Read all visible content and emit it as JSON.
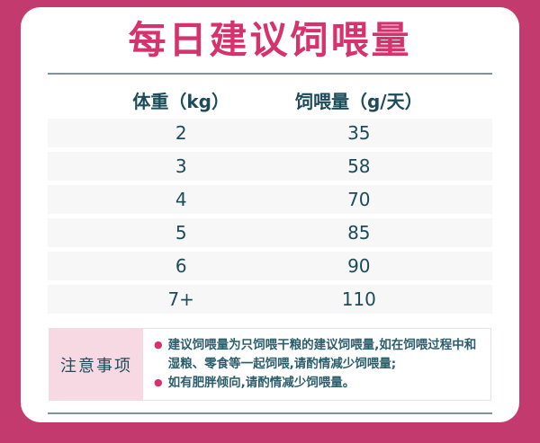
{
  "title": "每日建议饲喂量",
  "table": {
    "headers": [
      "体重（kg）",
      "饲喂量（g/天）"
    ],
    "rows": [
      [
        "2",
        "35"
      ],
      [
        "3",
        "58"
      ],
      [
        "4",
        "70"
      ],
      [
        "5",
        "85"
      ],
      [
        "6",
        "90"
      ],
      [
        "7+",
        "110"
      ]
    ]
  },
  "notes": {
    "label": "注意事项",
    "items": [
      "建议饲喂量为只饲喂干粮的建议饲喂量,如在饲喂过程中和湿粮、零食等一起饲喂,请酌情减少饲喂量;",
      "如有肥胖倾向,请酌情减少饲喂量。"
    ],
    "bullet_glyph": "●"
  },
  "colors": {
    "page_bg": "#c23a6e",
    "card_bg": "#ffffff",
    "title_pink": "#d6336c",
    "text_teal": "#1d4b59",
    "note_text_teal": "#2a5e6b",
    "row_stripe": "#f7f7f8",
    "note_label_bg": "#f7d9e4",
    "divider_gray": "#7e95a1",
    "bullet_pink": "#d6336c"
  },
  "chart_data": {
    "type": "table",
    "title": "每日建议饲喂量",
    "columns": [
      "体重（kg）",
      "饲喂量（g/天）"
    ],
    "categories": [
      "2",
      "3",
      "4",
      "5",
      "6",
      "7+"
    ],
    "values": [
      35,
      58,
      70,
      85,
      90,
      110
    ],
    "notes": [
      "建议饲喂量为只饲喂干粮的建议饲喂量,如在饲喂过程中和湿粮、零食等一起饲喂,请酌情减少饲喂量;",
      "如有肥胖倾向,请酌情减少饲喂量。"
    ]
  }
}
